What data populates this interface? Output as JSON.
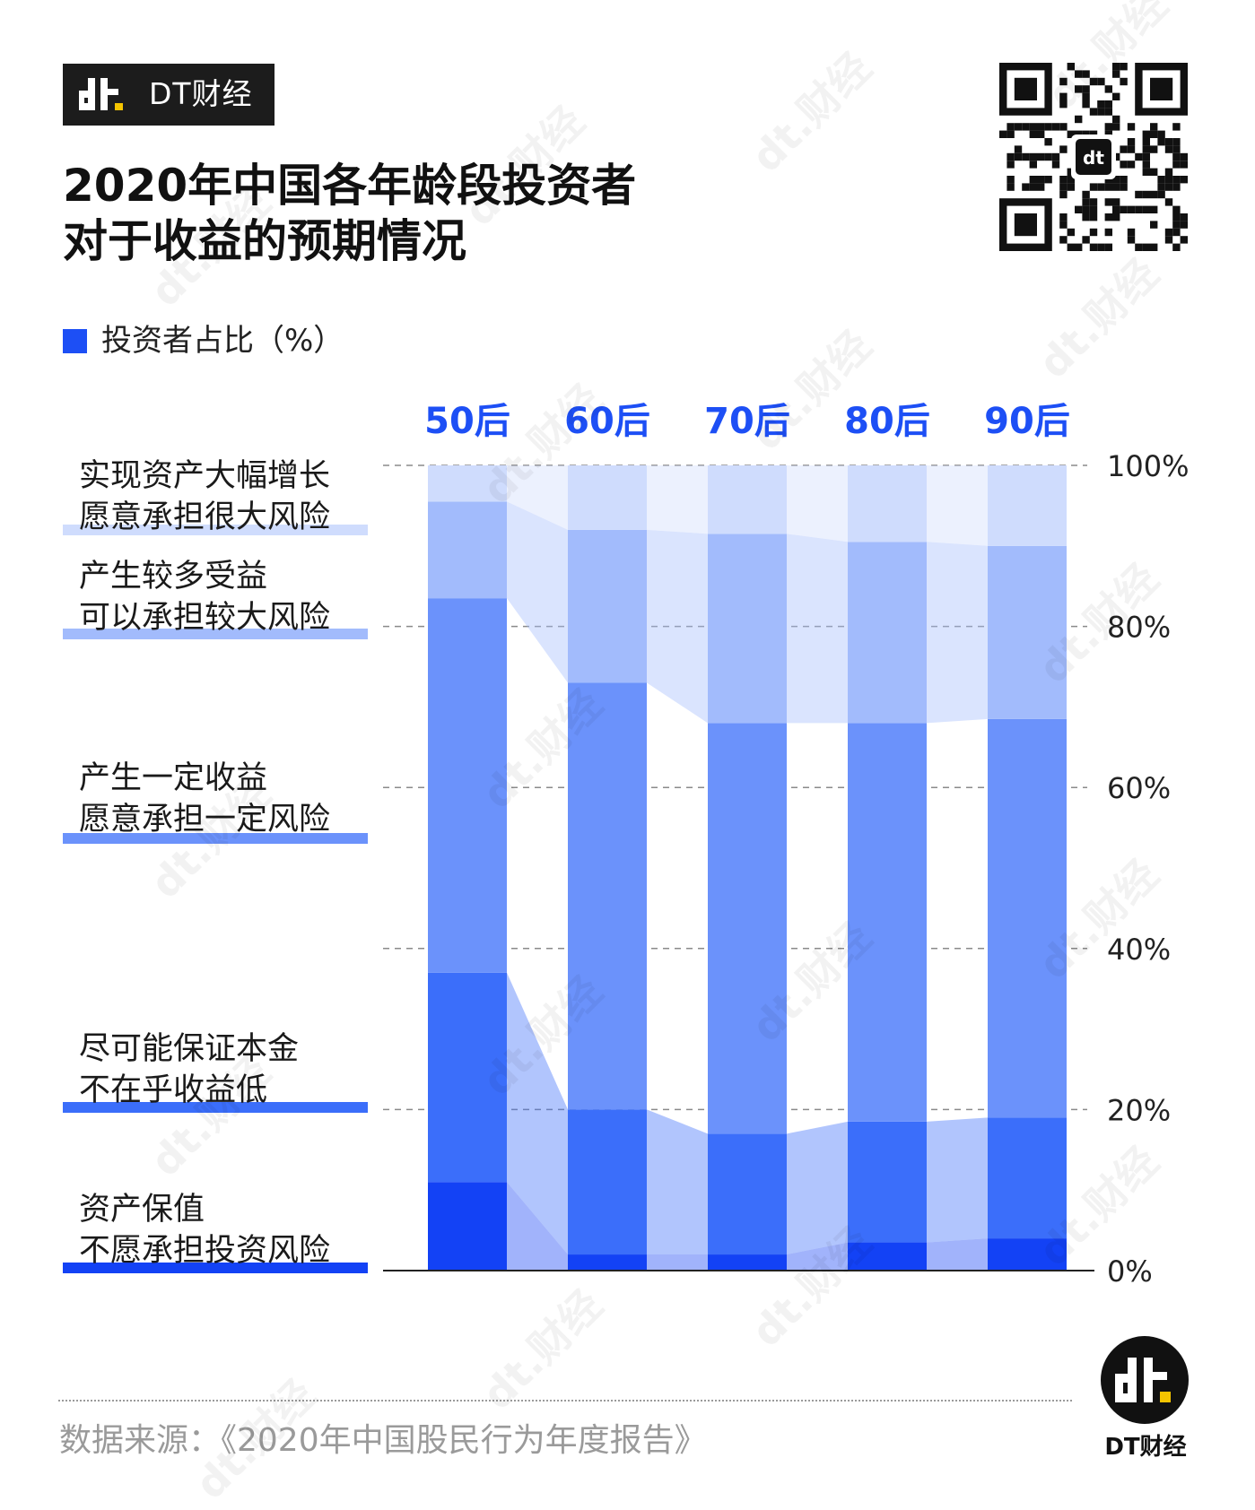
{
  "brand": {
    "name": "DT财经",
    "logo_icon": "dt-logo-icon"
  },
  "title": {
    "line1": "2020年中国各年龄段投资者",
    "line2": "对于收益的预期情况"
  },
  "legend": {
    "label": "投资者占比（%）",
    "color": "#1d4ff5"
  },
  "watermark": "dt.财经",
  "chart_data": {
    "type": "bar",
    "stacked": true,
    "categories": [
      "50后",
      "60后",
      "70后",
      "80后",
      "90后"
    ],
    "series": [
      {
        "name": "资产保值 不愿承担投资风险",
        "values": [
          11,
          2,
          2,
          3.5,
          4
        ],
        "color": "#1342f5"
      },
      {
        "name": "尽可能保证本金 不在乎收益低",
        "values": [
          26,
          18,
          15,
          15,
          15
        ],
        "color": "#3b6efa"
      },
      {
        "name": "产生一定收益 愿意承担一定风险",
        "values": [
          46.5,
          53,
          51,
          49.5,
          49.5
        ],
        "color": "#6b92fb"
      },
      {
        "name": "产生较多受益 可以承担较大风险",
        "values": [
          12,
          19,
          23.5,
          22.5,
          21.5
        ],
        "color": "#a2bbfc"
      },
      {
        "name": "实现资产大幅增长 愿意承担很大风险",
        "values": [
          4.5,
          8,
          8.5,
          9.5,
          10
        ],
        "color": "#cfdcfd"
      }
    ],
    "series_label_lines": [
      [
        "实现资产大幅增长",
        "愿意承担很大风险"
      ],
      [
        "产生较多受益",
        "可以承担较大风险"
      ],
      [
        "产生一定收益",
        "愿意承担一定风险"
      ],
      [
        "尽可能保证本金",
        "不在乎收益低"
      ],
      [
        "资产保值",
        "不愿承担投资风险"
      ]
    ],
    "ylim": [
      0,
      100
    ],
    "yticks": [
      "0%",
      "20%",
      "40%",
      "60%",
      "80%",
      "100%"
    ],
    "grid": "dashed",
    "legend_position": "top-left"
  },
  "source": "数据来源：《2020年中国股民行为年度报告》",
  "footer_brand": "DT财经"
}
